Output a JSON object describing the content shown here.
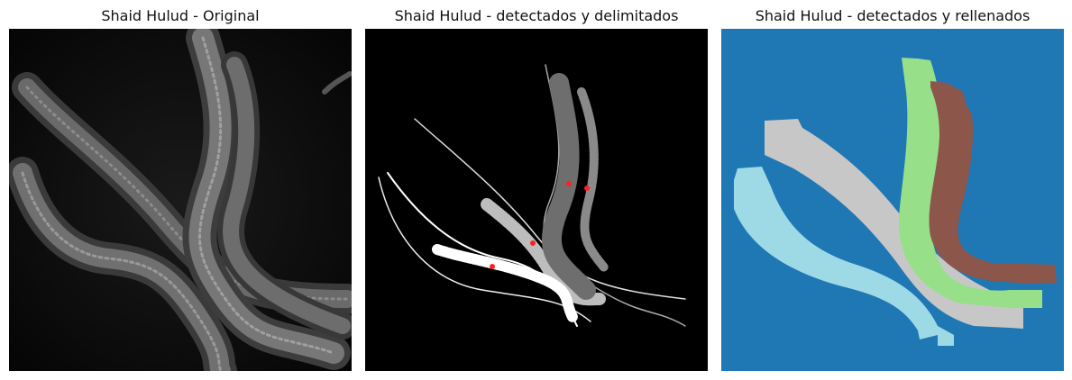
{
  "titles": {
    "original": "Shaid Hulud - Original",
    "outlined": "Shaid Hulud - detectados y delimitados",
    "filled": "Shaid Hulud - detectados y rellenados"
  },
  "colors": {
    "background_filled": "#1f77b4",
    "worm_a": "#9edae5",
    "worm_b": "#c7c7c7",
    "worm_c": "#98df8a",
    "worm_d": "#8c564b",
    "marker": "#ff2020"
  },
  "worm_count": 4
}
